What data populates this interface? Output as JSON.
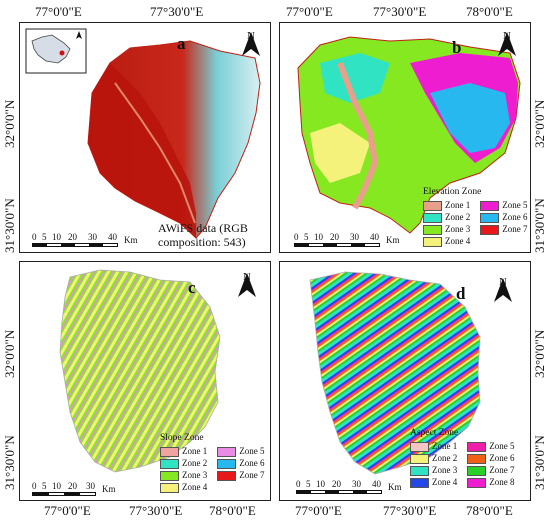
{
  "coords": {
    "top": [
      "77°0'0\"E",
      "77°30'0\"E",
      "77°0'0\"E",
      "77°30'0\"E",
      "78°0'0\"E"
    ],
    "bottom": [
      "77°0'0\"E",
      "77°30'0\"E",
      "78°0'0\"E",
      "77°0'0\"E",
      "77°30'0\"E",
      "78°0'0\"E"
    ],
    "left": [
      "32°0'0\"N",
      "31°30'0\"N",
      "32°0'0\"N",
      "31°30'0\"N"
    ],
    "right": [
      "32°0'0\"N",
      "31°30'0\"N",
      "32°0'0\"N",
      "31°30'0\"N"
    ]
  },
  "north_label": "N",
  "panels": {
    "a": {
      "label": "a",
      "description_line1": "AWiFS data (RGB",
      "description_line2": "composition: 543)",
      "scale_ticks": [
        "0",
        "5",
        "10",
        "20",
        "30",
        "40"
      ],
      "scale_unit": "Km"
    },
    "b": {
      "label": "b",
      "legend_title": "Elevation Zone",
      "zones": [
        {
          "name": "Zone 1",
          "color": "#e8a08a"
        },
        {
          "name": "Zone 5",
          "color": "#ee1ed0"
        },
        {
          "name": "Zone 2",
          "color": "#2fe3c3"
        },
        {
          "name": "Zone 6",
          "color": "#28b8f0"
        },
        {
          "name": "Zone 3",
          "color": "#86e820"
        },
        {
          "name": "Zone 7",
          "color": "#e81818"
        },
        {
          "name": "Zone 4",
          "color": "#f4f27a"
        }
      ],
      "scale_ticks": [
        "0",
        "5",
        "10",
        "20",
        "30",
        "40"
      ],
      "scale_unit": "Km"
    },
    "c": {
      "label": "c",
      "legend_title": "Slope Zone",
      "zones": [
        {
          "name": "Zone 1",
          "color": "#f0a4a0"
        },
        {
          "name": "Zone 5",
          "color": "#e88ce6"
        },
        {
          "name": "Zone 2",
          "color": "#2fe3c3"
        },
        {
          "name": "Zone 6",
          "color": "#28b8f0"
        },
        {
          "name": "Zone 3",
          "color": "#86e820"
        },
        {
          "name": "Zone 7",
          "color": "#e81818"
        },
        {
          "name": "Zone 4",
          "color": "#f4f27a"
        }
      ],
      "scale_ticks": [
        "0",
        "5",
        "10",
        "20",
        "30"
      ],
      "scale_unit": "Km"
    },
    "d": {
      "label": "d",
      "legend_title": "Aspect Zone",
      "zones": [
        {
          "name": "Zone 1",
          "color": "#f6c6c6"
        },
        {
          "name": "Zone 5",
          "color": "#ee1ea8"
        },
        {
          "name": "Zone 2",
          "color": "#f4f27a"
        },
        {
          "name": "Zone 6",
          "color": "#f06018"
        },
        {
          "name": "Zone 3",
          "color": "#2fe3c3"
        },
        {
          "name": "Zone 7",
          "color": "#2ad02a"
        },
        {
          "name": "Zone 4",
          "color": "#2448e8"
        },
        {
          "name": "Zone 8",
          "color": "#ee1ed0"
        }
      ],
      "scale_ticks": [
        "0",
        "5",
        "10",
        "20",
        "30",
        "40"
      ],
      "scale_unit": "Km"
    }
  }
}
